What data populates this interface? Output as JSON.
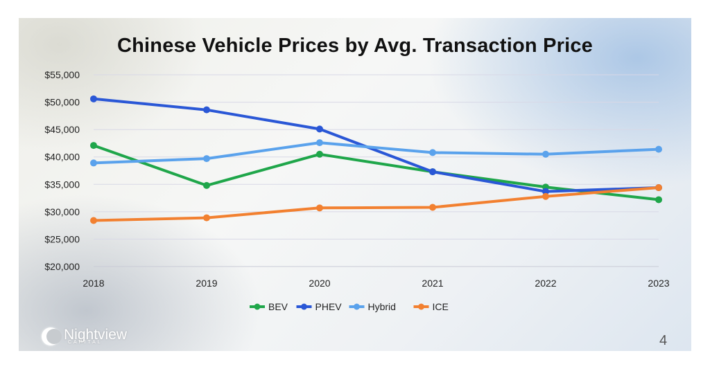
{
  "chart_data": {
    "type": "line",
    "title": "Chinese Vehicle Prices by Avg. Transaction Price",
    "xlabel": "",
    "ylabel": "",
    "categories": [
      "2018",
      "2019",
      "2020",
      "2021",
      "2022",
      "2023"
    ],
    "ylim": [
      20000,
      55000
    ],
    "yticks": [
      20000,
      25000,
      30000,
      35000,
      40000,
      45000,
      50000,
      55000
    ],
    "ytick_labels": [
      "$20,000",
      "$25,000",
      "$30,000",
      "$35,000",
      "$40,000",
      "$45,000",
      "$50,000",
      "$55,000"
    ],
    "grid": true,
    "legend_position": "bottom",
    "series": [
      {
        "name": "BEV",
        "color": "#1fa64a",
        "values": [
          42100,
          34800,
          40500,
          37300,
          34500,
          32200
        ]
      },
      {
        "name": "PHEV",
        "color": "#2a57d6",
        "values": [
          50600,
          48600,
          45100,
          37300,
          33700,
          34400
        ]
      },
      {
        "name": "Hybrid",
        "color": "#5aa2ec",
        "values": [
          38900,
          39700,
          42600,
          40800,
          40500,
          41400
        ]
      },
      {
        "name": "ICE",
        "color": "#f28030",
        "values": [
          28400,
          28900,
          30700,
          30800,
          32800,
          34400
        ]
      }
    ]
  },
  "branding": {
    "logo_text": "Nightview",
    "logo_subtext": "CAPITAL",
    "page_number": "4"
  }
}
